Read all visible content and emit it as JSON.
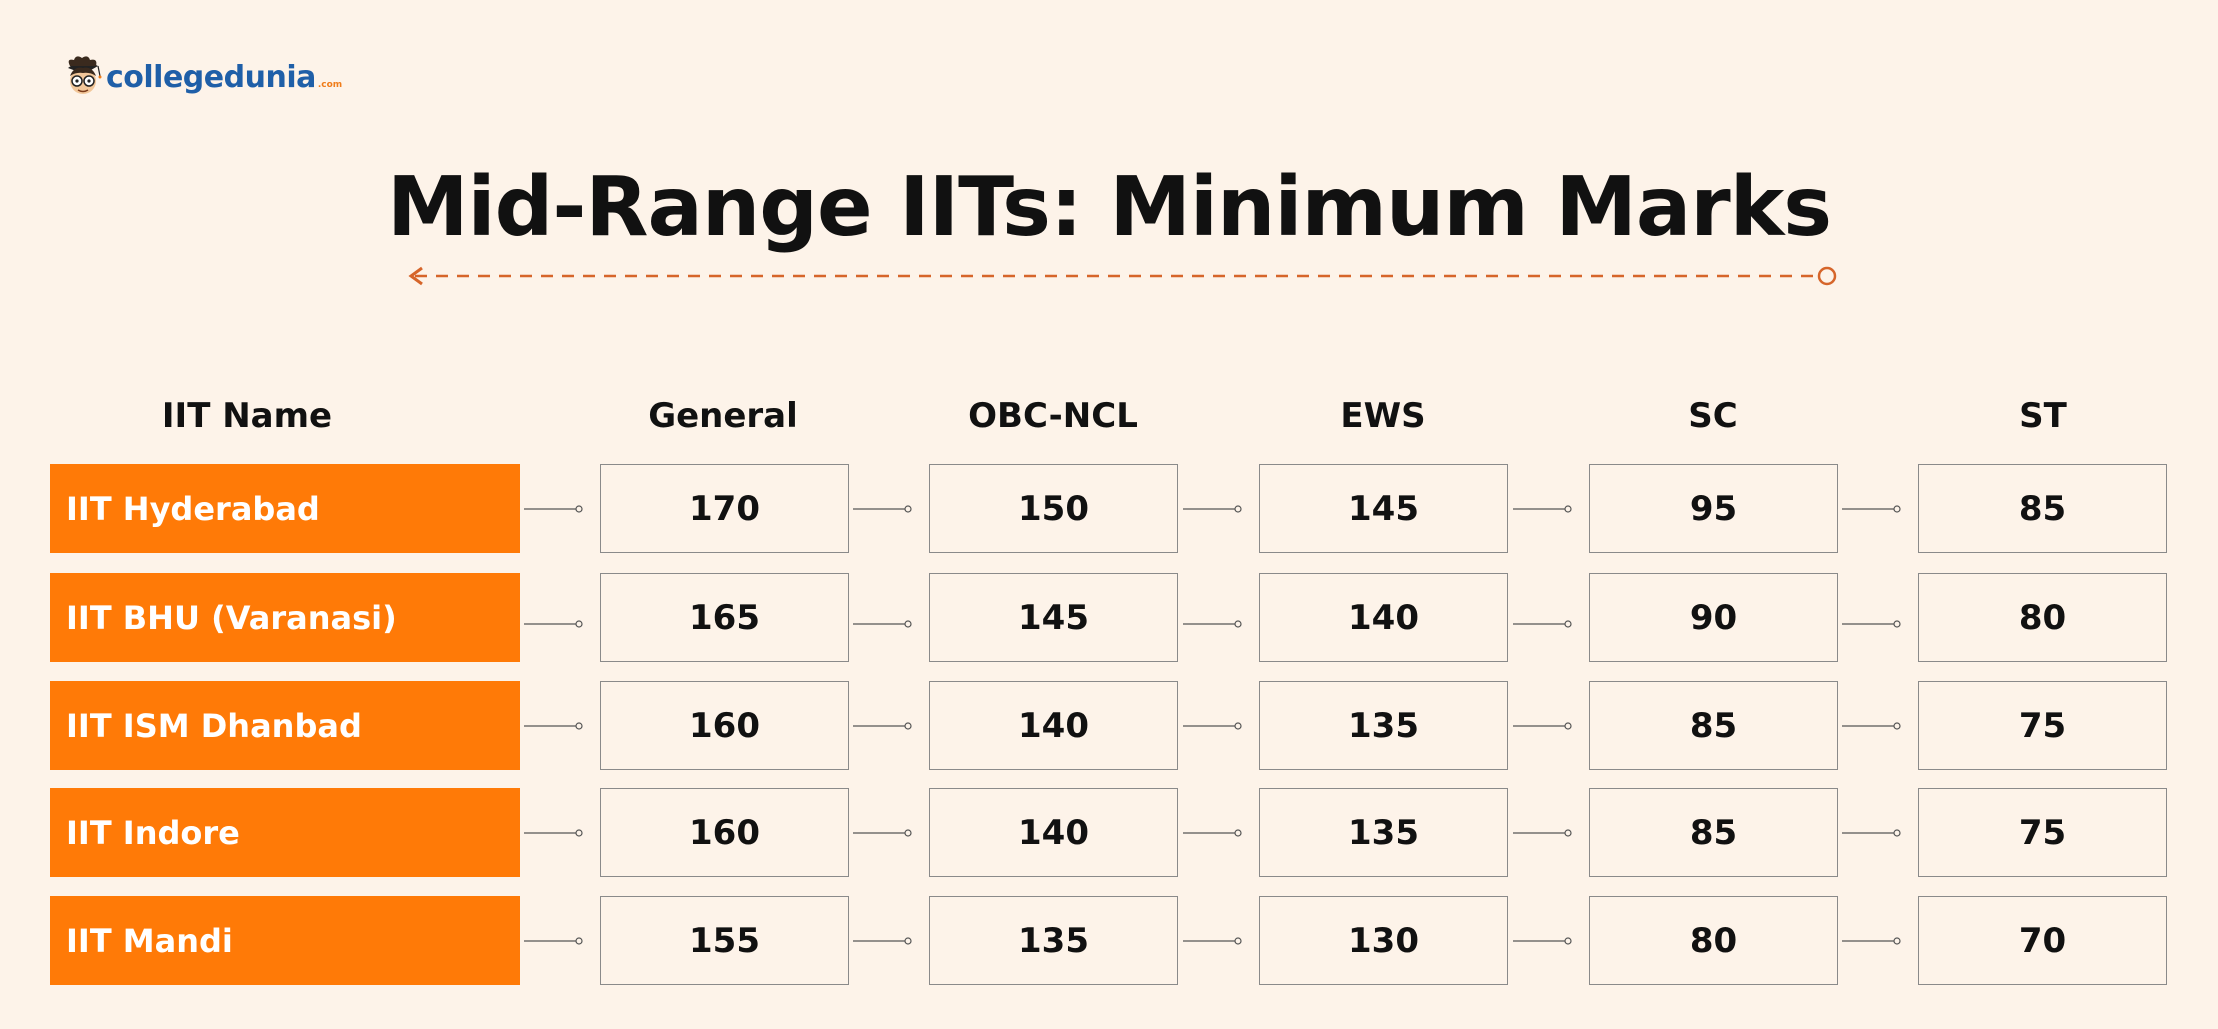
{
  "logo": {
    "text": "collegedunia",
    "suffix": ".com"
  },
  "title": "Mid-Range IITs: Minimum Marks",
  "colors": {
    "background": "#fdf3e9",
    "accent": "#ff7a07",
    "line": "#d6652a",
    "logo_blue": "#1f5fa8"
  },
  "table": {
    "headers": [
      "IIT Name",
      "General",
      "OBC-NCL",
      "EWS",
      "SC",
      "ST"
    ],
    "rows": [
      {
        "name": "IIT Hyderabad",
        "values": [
          "170",
          "150",
          "145",
          "95",
          "85"
        ]
      },
      {
        "name": "IIT BHU (Varanasi)",
        "values": [
          "165",
          "145",
          "140",
          "90",
          "80"
        ]
      },
      {
        "name": "IIT ISM Dhanbad",
        "values": [
          "160",
          "140",
          "135",
          "85",
          "75"
        ]
      },
      {
        "name": "IIT Indore",
        "values": [
          "160",
          "140",
          "135",
          "85",
          "75"
        ]
      },
      {
        "name": "IIT Mandi",
        "values": [
          "155",
          "135",
          "130",
          "80",
          "70"
        ]
      }
    ]
  }
}
